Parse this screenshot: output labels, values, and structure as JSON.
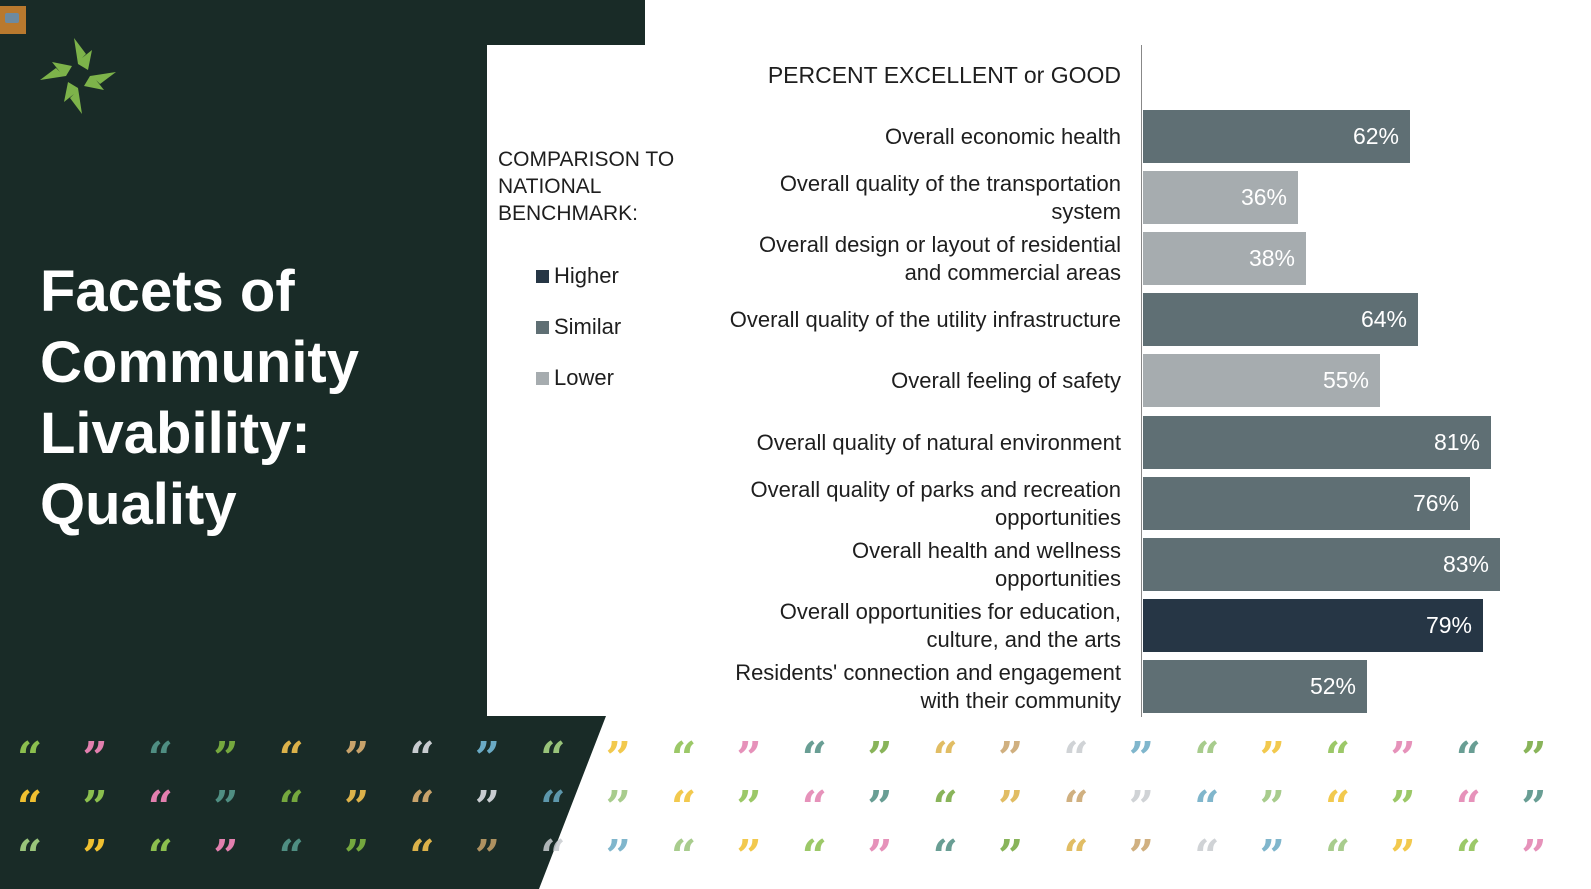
{
  "slide": {
    "title_lines": [
      "Facets of",
      "Community",
      "Livability:",
      "Quality"
    ]
  },
  "legend": {
    "title_lines": [
      "COMPARISON TO",
      "NATIONAL",
      "BENCHMARK:"
    ],
    "items": [
      {
        "label": "Higher",
        "color": "#263645"
      },
      {
        "label": "Similar",
        "color": "#5f6f74"
      },
      {
        "label": "Lower",
        "color": "#a6acaf"
      }
    ]
  },
  "chart_data": {
    "type": "bar",
    "orientation": "horizontal",
    "title": "PERCENT EXCELLENT or GOOD",
    "xlim": [
      0,
      100
    ],
    "categories": [
      [
        "Overall economic health"
      ],
      [
        "Overall quality of the transportation",
        "system"
      ],
      [
        "Overall design or layout of residential",
        "and commercial areas"
      ],
      [
        "Overall quality of the utility infrastructure"
      ],
      [
        "Overall feeling of safety"
      ],
      [
        "Overall quality of natural environment"
      ],
      [
        "Overall quality of parks and recreation",
        "opportunities"
      ],
      [
        "Overall health and wellness",
        "opportunities"
      ],
      [
        "Overall opportunities for education,",
        "culture, and the arts"
      ],
      [
        "Residents' connection and engagement",
        "with their community"
      ]
    ],
    "values": [
      62,
      36,
      38,
      64,
      55,
      81,
      76,
      83,
      79,
      52
    ],
    "data_labels": [
      "62%",
      "36%",
      "38%",
      "64%",
      "55%",
      "81%",
      "76%",
      "83%",
      "79%",
      "52%"
    ],
    "benchmark": [
      "Similar",
      "Lower",
      "Lower",
      "Similar",
      "Lower",
      "Similar",
      "Similar",
      "Similar",
      "Higher",
      "Similar"
    ]
  },
  "colors": {
    "dark_background": "#192b27",
    "logo_green": "#7db34a",
    "higher": "#263645",
    "similar": "#5f6f74",
    "lower": "#a6acaf"
  },
  "decor": {
    "quote_glyphs": [
      "“",
      "”"
    ],
    "quote_colors": [
      "#8bbf4e",
      "#6aaac4",
      "#dcb24a",
      "#e27fae",
      "#99c47a",
      "#c8a36b",
      "#4f8e82",
      "#f0c030",
      "#c8ccd0",
      "#75a83e"
    ]
  }
}
